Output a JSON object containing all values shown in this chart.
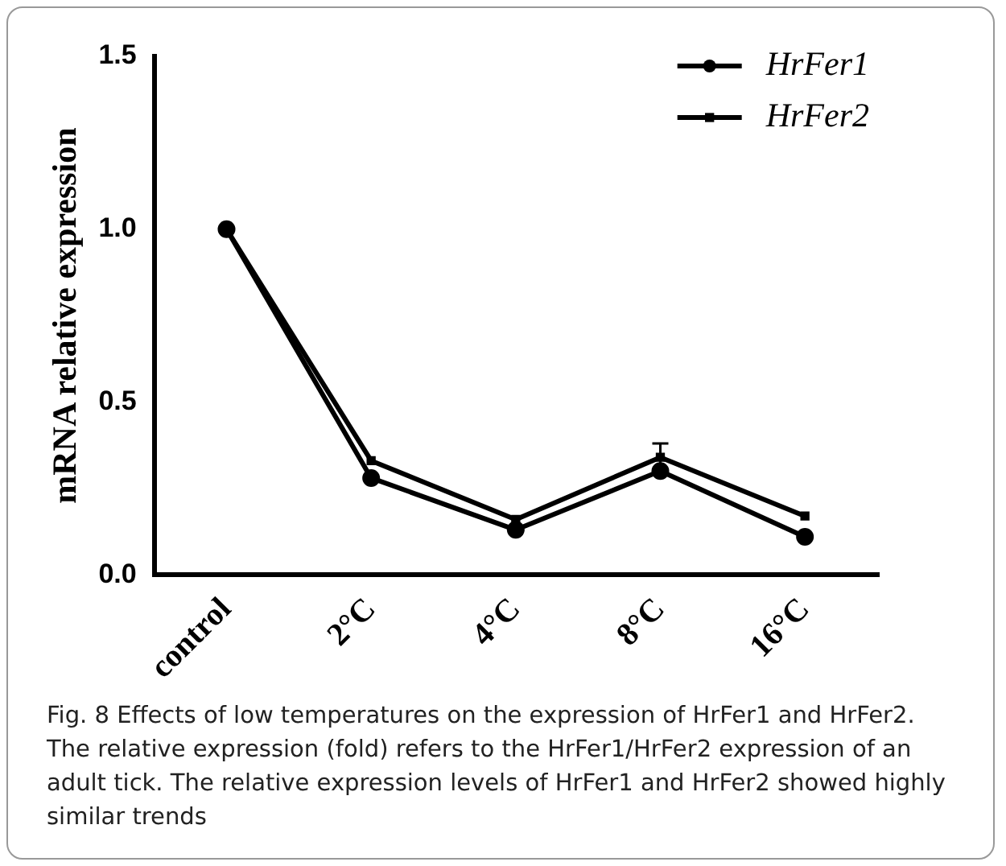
{
  "chart_data": {
    "type": "line",
    "ylabel": "mRNA relative expression",
    "categories": [
      "control",
      "2°C",
      "4°C",
      "8°C",
      "16°C"
    ],
    "series": [
      {
        "name": "HrFer1",
        "color": "#000000",
        "marker": "circle",
        "values": [
          1.0,
          0.28,
          0.13,
          0.3,
          0.11
        ]
      },
      {
        "name": "HrFer2",
        "color": "#000000",
        "marker": "square",
        "values": [
          1.0,
          0.33,
          0.16,
          0.34,
          0.17
        ],
        "errors": [
          null,
          null,
          null,
          0.04,
          null
        ]
      }
    ],
    "ylim": [
      0,
      1.5
    ],
    "yticks": [
      {
        "value": 0,
        "label": "0.0"
      },
      {
        "value": 0.5,
        "label": "0.5"
      },
      {
        "value": 1,
        "label": "1.0"
      },
      {
        "value": 1.5,
        "label": "1.5"
      }
    ],
    "grid": false,
    "legend": "top right",
    "line_style": "solid",
    "annotations": [
      "Fig. 8  Effects of low temperatures on the expression of HrFer1 and HrFer2. The relative expression (fold) refers to the HrFer1/HrFer2 expression of an adult tick. The relative expression levels of HrFer1 and HrFer2 showed highly similar trends"
    ]
  }
}
